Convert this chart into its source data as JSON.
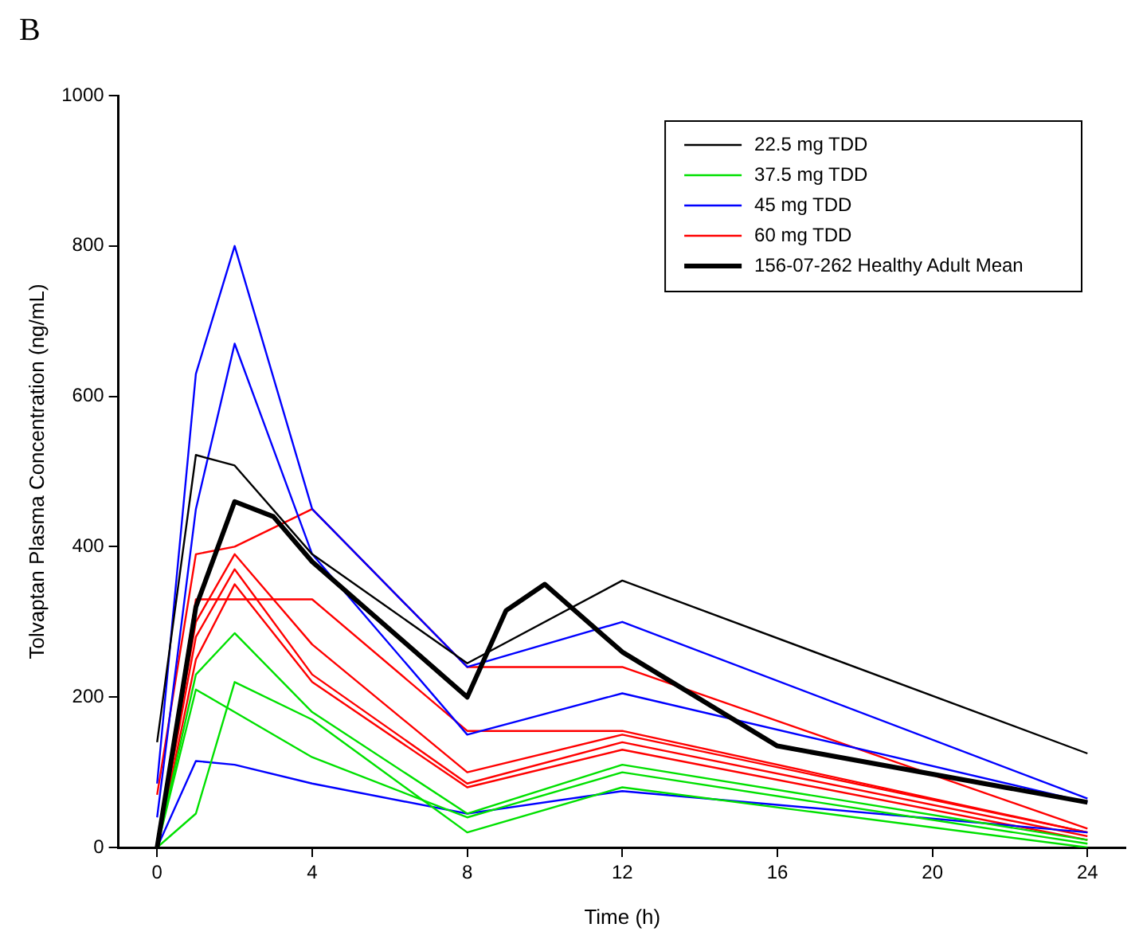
{
  "chart_data": {
    "type": "line",
    "title": "B",
    "xlabel": "Time (h)",
    "ylabel": "Tolvaptan Plasma Concentration (ng/mL)",
    "xlim": [
      -1,
      25
    ],
    "xticks": [
      0,
      4,
      8,
      12,
      16,
      20,
      24
    ],
    "ylim": [
      0,
      1000
    ],
    "yticks": [
      0,
      200,
      400,
      600,
      800,
      1000
    ],
    "grid": false,
    "legend": "top right",
    "marker": "none",
    "line_style": "solid",
    "series": [
      {
        "name": "22.5 mg TDD",
        "color": "#000000",
        "x": [
          0,
          1,
          2,
          4,
          8,
          12,
          24
        ],
        "values": [
          140,
          522,
          508,
          390,
          245,
          355,
          125
        ]
      },
      {
        "name": "37.5 mg TDD",
        "color": "#00e000",
        "x": [
          0,
          1,
          2,
          4,
          8,
          12,
          24
        ],
        "values": [
          0,
          230,
          285,
          180,
          45,
          110,
          10
        ]
      },
      {
        "color": "#00e000",
        "x": [
          0,
          1,
          2,
          4,
          8,
          12,
          24
        ],
        "values": [
          0,
          210,
          180,
          120,
          40,
          100,
          5
        ]
      },
      {
        "color": "#00e000",
        "x": [
          0,
          1,
          2,
          4,
          8,
          12,
          24
        ],
        "values": [
          0,
          45,
          220,
          170,
          20,
          80,
          0
        ]
      },
      {
        "name": "45 mg TDD",
        "color": "#0000ff",
        "x": [
          0,
          1,
          2,
          4,
          8,
          12,
          24
        ],
        "values": [
          85,
          630,
          800,
          450,
          240,
          300,
          65
        ]
      },
      {
        "color": "#0000ff",
        "x": [
          0,
          1,
          2,
          4,
          8,
          12,
          24
        ],
        "values": [
          40,
          450,
          670,
          390,
          150,
          205,
          60
        ]
      },
      {
        "color": "#0000ff",
        "x": [
          0,
          1,
          2,
          4,
          8,
          12,
          24
        ],
        "values": [
          0,
          115,
          110,
          85,
          45,
          75,
          20
        ]
      },
      {
        "name": "60 mg TDD",
        "color": "#ff0000",
        "x": [
          0,
          1,
          2,
          4,
          8,
          12,
          24
        ],
        "values": [
          70,
          390,
          400,
          450,
          240,
          240,
          25
        ]
      },
      {
        "color": "#ff0000",
        "x": [
          0,
          1,
          2,
          4,
          8,
          12,
          24
        ],
        "values": [
          0,
          330,
          330,
          330,
          155,
          155,
          20
        ]
      },
      {
        "color": "#ff0000",
        "x": [
          0,
          1,
          2,
          4,
          8,
          12,
          24
        ],
        "values": [
          0,
          300,
          390,
          270,
          100,
          150,
          20
        ]
      },
      {
        "color": "#ff0000",
        "x": [
          0,
          1,
          2,
          4,
          8,
          12,
          24
        ],
        "values": [
          0,
          280,
          370,
          230,
          85,
          140,
          15
        ]
      },
      {
        "color": "#ff0000",
        "x": [
          0,
          1,
          2,
          4,
          8,
          12,
          24
        ],
        "values": [
          0,
          250,
          350,
          220,
          80,
          130,
          10
        ]
      },
      {
        "name": "156-07-262 Healthy Adult Mean",
        "color": "#000000",
        "x": [
          0,
          1,
          2,
          3,
          4,
          8,
          9,
          10,
          12,
          16,
          24
        ],
        "values": [
          0,
          320,
          460,
          440,
          380,
          200,
          315,
          350,
          260,
          135,
          60
        ]
      }
    ]
  }
}
